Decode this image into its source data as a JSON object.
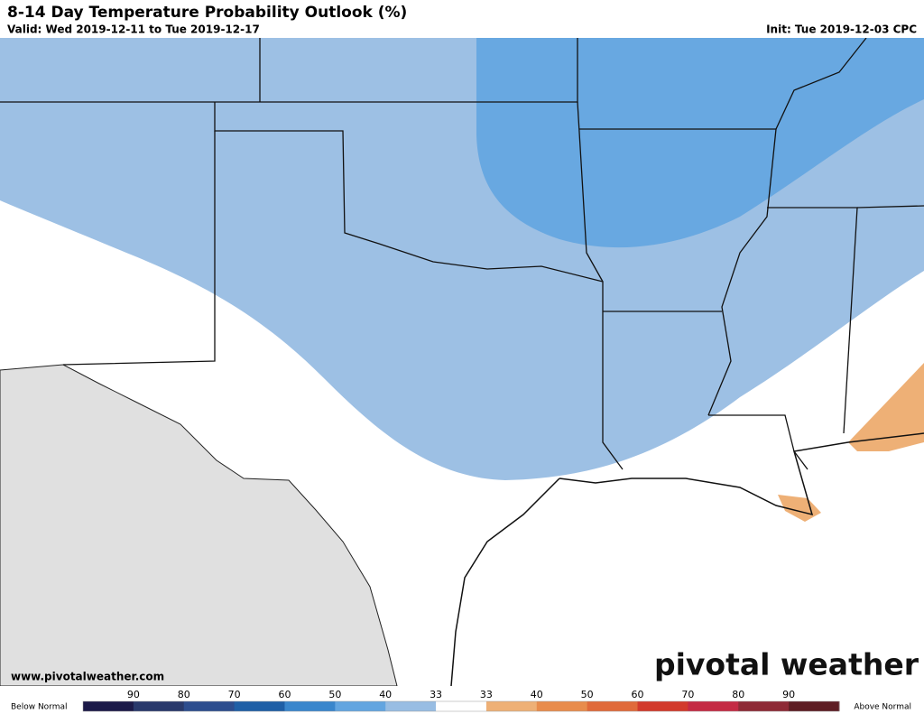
{
  "header": {
    "title": "8-14 Day Temperature Probability Outlook (%)",
    "valid": "Valid: Wed 2019-12-11 to Tue 2019-12-17",
    "init": "Init: Tue 2019-12-03 CPC"
  },
  "footer": {
    "website": "www.pivotalweather.com",
    "logo": "pivotal weather"
  },
  "legend": {
    "left_label": "Below Normal",
    "right_label": "Above Normal",
    "labels": [
      "90",
      "80",
      "70",
      "60",
      "50",
      "40",
      "33",
      "33",
      "40",
      "50",
      "60",
      "70",
      "80",
      "90"
    ],
    "colors": [
      "#1c1a48",
      "#29396b",
      "#2d4d8e",
      "#1f5fa6",
      "#3a86cc",
      "#63a5e0",
      "#98bde3",
      "#ffffff",
      "#eeb076",
      "#e88c4c",
      "#e06a3a",
      "#d23a2c",
      "#c42a44",
      "#8e2a36",
      "#5e1e24"
    ]
  }
}
